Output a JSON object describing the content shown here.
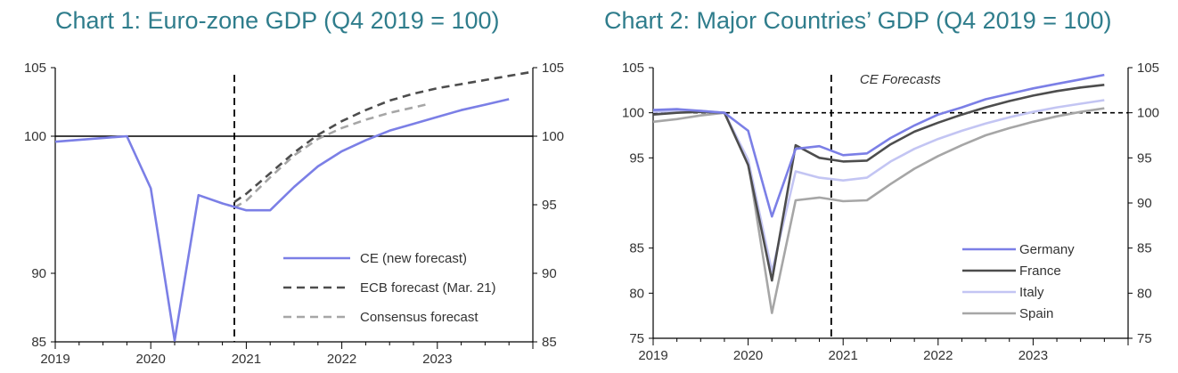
{
  "colors": {
    "title": "#2f7d8c",
    "ce": "#7b7fe6",
    "ecb": "#4d4d4d",
    "consensus": "#a6a6a6",
    "germany": "#7b7fe6",
    "france": "#4d4d4d",
    "italy": "#c3c5f3",
    "spain": "#a6a6a6"
  },
  "chart_data": [
    {
      "type": "line",
      "title": "Chart 1: Euro-zone GDP (Q4 2019 = 100)",
      "x_ticks": [
        "2019",
        "2020",
        "2021",
        "2022",
        "2023"
      ],
      "y_ticks_left": [
        "85",
        "90",
        "100",
        "105"
      ],
      "y_ticks_right": [
        "85",
        "90",
        "95",
        "100",
        "105"
      ],
      "ylim": [
        85,
        105
      ],
      "xlim": [
        2019.0,
        2024.0
      ],
      "reference_line": 100,
      "forecast_divider_x": 2020.875,
      "legend_position": "bottom-right",
      "series": [
        {
          "name": "CE (new forecast)",
          "style": "solid",
          "x": [
            2019.0,
            2019.75,
            2020.0,
            2020.25,
            2020.5,
            2020.75,
            2021.0,
            2021.25,
            2021.5,
            2021.75,
            2022.0,
            2022.25,
            2022.5,
            2022.75,
            2023.0,
            2023.25,
            2023.5,
            2023.75
          ],
          "y": [
            99.6,
            100.0,
            96.2,
            85.1,
            95.7,
            95.1,
            94.6,
            94.6,
            96.3,
            97.8,
            98.9,
            99.7,
            100.4,
            100.9,
            101.4,
            101.9,
            102.3,
            102.7
          ]
        },
        {
          "name": "ECB forecast (Mar. 21)",
          "style": "dashed",
          "x": [
            2020.875,
            2021.0,
            2021.25,
            2021.5,
            2021.75,
            2022.0,
            2022.25,
            2022.5,
            2022.75,
            2023.0,
            2023.25,
            2023.5,
            2023.75,
            2024.0
          ],
          "y": [
            95.2,
            95.8,
            97.3,
            98.8,
            100.1,
            101.1,
            101.9,
            102.6,
            103.1,
            103.5,
            103.8,
            104.1,
            104.4,
            104.7
          ]
        },
        {
          "name": "Consensus forecast",
          "style": "dashed",
          "x": [
            2020.875,
            2021.0,
            2021.25,
            2021.5,
            2021.75,
            2022.0,
            2022.25,
            2022.5,
            2022.75,
            2022.875
          ],
          "y": [
            94.8,
            95.3,
            97.0,
            98.6,
            99.8,
            100.6,
            101.2,
            101.7,
            102.1,
            102.3
          ]
        }
      ]
    },
    {
      "type": "line",
      "title": "Chart 2: Major Countries’ GDP (Q4 2019 = 100)",
      "x_ticks": [
        "2019",
        "2020",
        "2021",
        "2022",
        "2023"
      ],
      "y_ticks_left": [
        "75",
        "80",
        "85",
        "95",
        "100",
        "105"
      ],
      "y_ticks_right": [
        "75",
        "80",
        "85",
        "90",
        "95",
        "100",
        "105"
      ],
      "ylim": [
        75,
        105
      ],
      "xlim": [
        2019.0,
        2024.0
      ],
      "reference_line": 100,
      "forecast_divider_x": 2020.875,
      "annotation": "CE Forecasts",
      "legend_position": "bottom-right",
      "series": [
        {
          "name": "Germany",
          "x": [
            2019.0,
            2019.25,
            2019.5,
            2019.75,
            2020.0,
            2020.25,
            2020.5,
            2020.75,
            2021.0,
            2021.25,
            2021.5,
            2021.75,
            2022.0,
            2022.25,
            2022.5,
            2022.75,
            2023.0,
            2023.25,
            2023.5,
            2023.75
          ],
          "y": [
            100.3,
            100.4,
            100.2,
            100.0,
            98.0,
            88.5,
            96.0,
            96.3,
            95.3,
            95.5,
            97.2,
            98.6,
            99.8,
            100.6,
            101.5,
            102.1,
            102.7,
            103.2,
            103.7,
            104.2
          ]
        },
        {
          "name": "France",
          "x": [
            2019.0,
            2019.25,
            2019.5,
            2019.75,
            2020.0,
            2020.25,
            2020.5,
            2020.75,
            2021.0,
            2021.25,
            2021.5,
            2021.75,
            2022.0,
            2022.25,
            2022.5,
            2022.75,
            2023.0,
            2023.25,
            2023.5,
            2023.75
          ],
          "y": [
            99.8,
            100.0,
            100.1,
            100.0,
            94.2,
            81.4,
            96.4,
            95.0,
            94.6,
            94.7,
            96.5,
            97.9,
            98.9,
            99.8,
            100.6,
            101.3,
            101.9,
            102.4,
            102.8,
            103.1
          ]
        },
        {
          "name": "Italy",
          "x": [
            2019.0,
            2019.25,
            2019.5,
            2019.75,
            2020.0,
            2020.25,
            2020.5,
            2020.75,
            2021.0,
            2021.25,
            2021.5,
            2021.75,
            2022.0,
            2022.25,
            2022.5,
            2022.75,
            2023.0,
            2023.25,
            2023.5,
            2023.75
          ],
          "y": [
            100.1,
            100.2,
            100.2,
            100.0,
            94.8,
            82.4,
            93.5,
            92.8,
            92.5,
            92.8,
            94.6,
            96.0,
            97.1,
            98.0,
            98.8,
            99.5,
            100.1,
            100.6,
            101.0,
            101.4
          ]
        },
        {
          "name": "Spain",
          "x": [
            2019.0,
            2019.25,
            2019.5,
            2019.75,
            2020.0,
            2020.25,
            2020.5,
            2020.75,
            2021.0,
            2021.25,
            2021.5,
            2021.75,
            2022.0,
            2022.25,
            2022.5,
            2022.75,
            2023.0,
            2023.25,
            2023.5,
            2023.75
          ],
          "y": [
            99.0,
            99.3,
            99.7,
            100.0,
            94.5,
            77.8,
            90.3,
            90.6,
            90.2,
            90.3,
            92.1,
            93.8,
            95.2,
            96.4,
            97.5,
            98.3,
            99.0,
            99.6,
            100.1,
            100.5
          ]
        }
      ]
    }
  ]
}
